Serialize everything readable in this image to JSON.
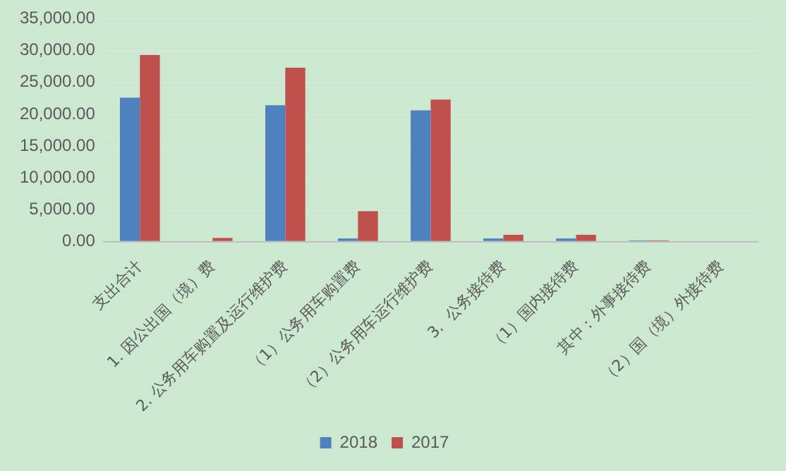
{
  "chart_data": {
    "type": "bar",
    "categories": [
      "支出合计",
      "1. 因公出国（境）费",
      "2. 公务用车购置及运行维护费",
      "（1）公务用车购置费",
      "（2）公务用车运行维护费",
      "3.  公务接待费",
      "（1）国内接待费",
      "其中：外事接待费",
      "（2）国（境）外接待费"
    ],
    "series": [
      {
        "name": "2018",
        "color": "#4f81bd",
        "values": [
          22600,
          0,
          21400,
          500,
          20600,
          500,
          500,
          200,
          0
        ]
      },
      {
        "name": "2017",
        "color": "#c0504d",
        "values": [
          29300,
          600,
          27300,
          4800,
          22300,
          1100,
          1100,
          200,
          0
        ]
      }
    ],
    "ylim": [
      0,
      35000
    ],
    "yticks": [
      {
        "value": 0,
        "label": "0.00"
      },
      {
        "value": 5000,
        "label": "5,000.00"
      },
      {
        "value": 10000,
        "label": "10,000.00"
      },
      {
        "value": 15000,
        "label": "15,000.00"
      },
      {
        "value": 20000,
        "label": "20,000.00"
      },
      {
        "value": 25000,
        "label": "25,000.00"
      },
      {
        "value": 30000,
        "label": "30,000.00"
      },
      {
        "value": 35000,
        "label": "35,000.00"
      }
    ],
    "grid": "y",
    "legend": "bottom"
  }
}
